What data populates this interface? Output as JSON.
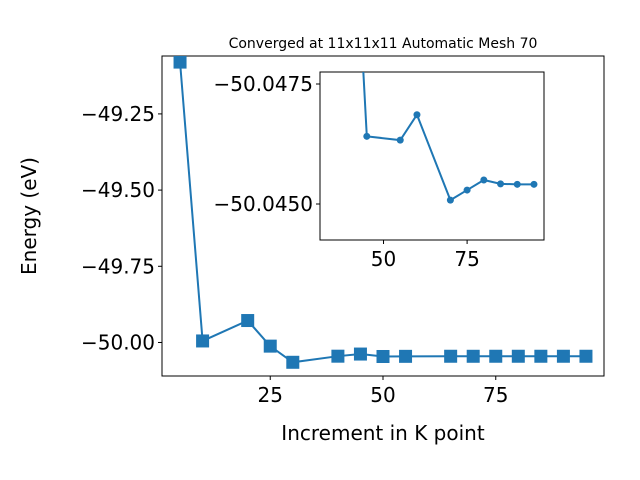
{
  "chart_data": [
    {
      "type": "line",
      "title": "Converged at 11x11x11 Automatic Mesh 70",
      "xlabel": "Increment in K point",
      "ylabel": "Energy (eV)",
      "xlim": [
        1,
        99
      ],
      "ylim": [
        -50.11,
        -49.06
      ],
      "xticks": [
        25,
        50,
        75
      ],
      "yticks": [
        -49.25,
        -49.5,
        -49.75,
        -50.0
      ],
      "ytick_labels": [
        "−49.25",
        "−49.50",
        "−49.75",
        "−50.00"
      ],
      "marker": "square",
      "color": "#1f77b4",
      "series": [
        {
          "x": [
            5,
            10,
            20,
            25,
            30,
            40,
            45,
            50,
            55,
            65,
            70,
            75,
            80,
            85,
            90,
            95
          ],
          "y": [
            -49.08,
            -49.995,
            -49.928,
            -50.012,
            -50.065,
            -50.045,
            -50.038,
            -50.046,
            -50.0455,
            -50.0452,
            -50.0453,
            -50.0452,
            -50.0452,
            -50.0452,
            -50.0452,
            -50.0452
          ]
        }
      ]
    },
    {
      "type": "line",
      "title": "",
      "inset": true,
      "xlim": [
        31,
        98
      ],
      "ylim": [
        -50.04425,
        -50.04775
      ],
      "xticks": [
        50,
        75
      ],
      "yticks": [
        -50.0475,
        -50.045
      ],
      "ytick_labels": [
        "−50.0475",
        "−50.0450"
      ],
      "marker": "circle",
      "color": "#1f77b4",
      "series": [
        {
          "x": [
            43,
            45,
            55,
            60,
            70,
            75,
            80,
            85,
            90,
            95
          ],
          "y": [
            -50.049,
            -50.04641,
            -50.04633,
            -50.04686,
            -50.04508,
            -50.04529,
            -50.0455,
            -50.04542,
            -50.04541,
            -50.04541
          ]
        }
      ]
    }
  ]
}
